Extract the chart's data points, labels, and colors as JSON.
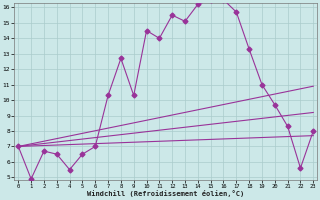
{
  "xlabel": "Windchill (Refroidissement éolien,°C)",
  "background_color": "#cce8e8",
  "grid_color": "#aacccc",
  "line_color": "#993399",
  "xmin": 0,
  "xmax": 23,
  "ymin": 5,
  "ymax": 16,
  "yticks": [
    5,
    6,
    7,
    8,
    9,
    10,
    11,
    12,
    13,
    14,
    15,
    16
  ],
  "xticks": [
    0,
    1,
    2,
    3,
    4,
    5,
    6,
    7,
    8,
    9,
    10,
    11,
    12,
    13,
    14,
    15,
    16,
    17,
    18,
    19,
    20,
    21,
    22,
    23
  ],
  "series1_x": [
    0,
    1,
    2,
    3,
    4,
    5,
    6,
    7,
    8,
    9,
    10,
    11,
    12,
    13,
    14,
    15,
    16,
    17,
    18,
    19,
    20,
    21,
    22,
    23
  ],
  "series1_y": [
    7.0,
    4.9,
    6.7,
    6.5,
    5.5,
    6.5,
    7.0,
    10.3,
    12.7,
    10.3,
    14.5,
    14.0,
    15.5,
    15.1,
    16.2,
    16.5,
    16.5,
    15.7,
    13.3,
    11.0,
    9.7,
    8.3,
    5.6,
    8.0
  ],
  "series2_x": [
    0,
    23
  ],
  "series2_y": [
    7.0,
    10.9
  ],
  "series3_x": [
    0,
    23
  ],
  "series3_y": [
    7.0,
    9.2
  ],
  "series4_x": [
    0,
    23
  ],
  "series4_y": [
    7.0,
    7.7
  ],
  "figwidth": 3.2,
  "figheight": 2.0,
  "dpi": 100
}
